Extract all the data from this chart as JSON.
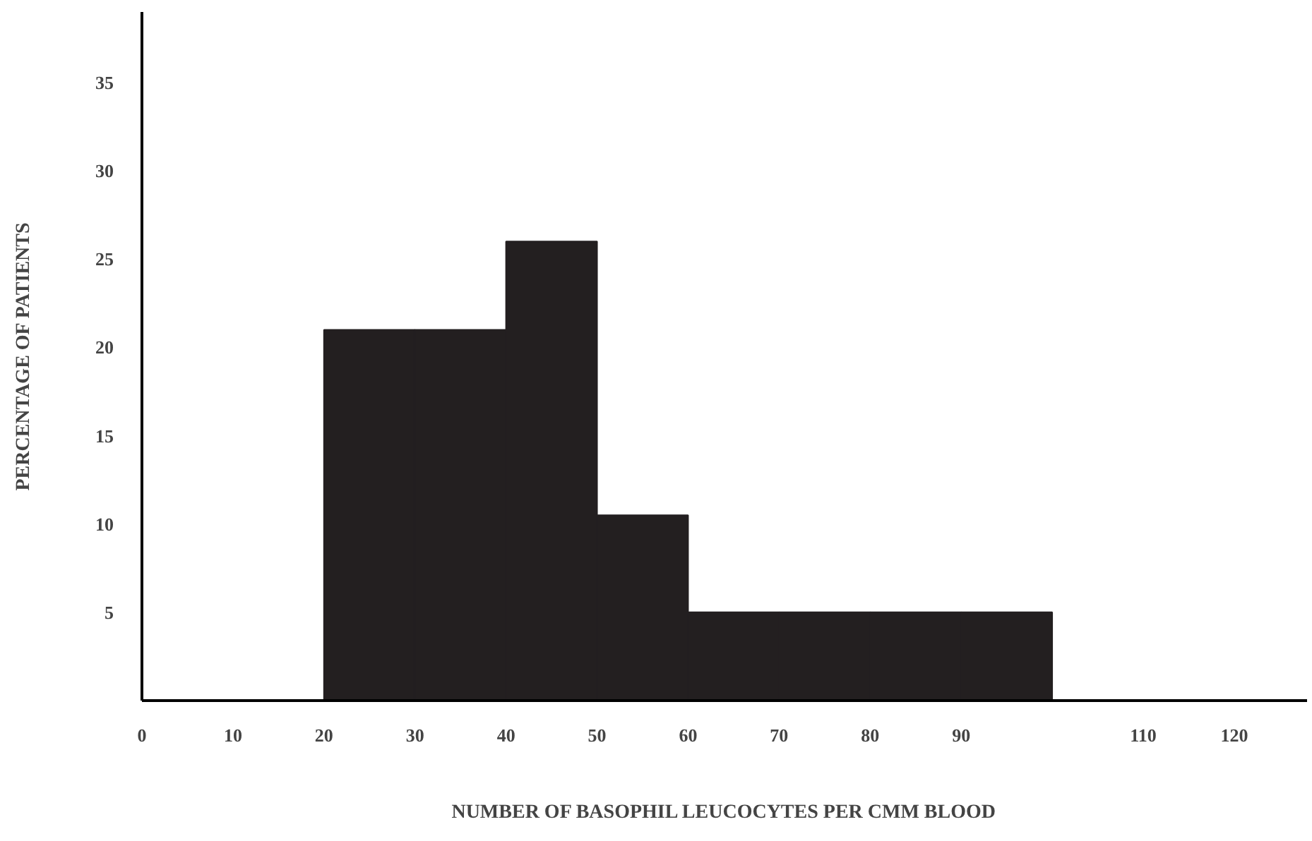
{
  "chart_data": {
    "type": "histogram",
    "xlabel": "NUMBER OF BASOPHIL LEUCOCYTES PER CMM BLOOD",
    "ylabel": "PERCENTAGE OF PATIENTS",
    "bins": [
      0,
      10,
      20,
      30,
      40,
      50,
      60,
      70,
      80,
      90,
      100,
      110,
      120
    ],
    "values": [
      0,
      0,
      21,
      21,
      26,
      10.5,
      5,
      5,
      5,
      5,
      0,
      0
    ],
    "color": "#231f20",
    "xlim": [
      0,
      128
    ],
    "ylim": [
      0,
      39
    ],
    "xticks": [
      0,
      10,
      20,
      30,
      40,
      50,
      60,
      70,
      80,
      90,
      110,
      120
    ],
    "yticks": [
      5,
      10,
      15,
      20,
      25,
      30,
      35
    ],
    "grid": false
  }
}
